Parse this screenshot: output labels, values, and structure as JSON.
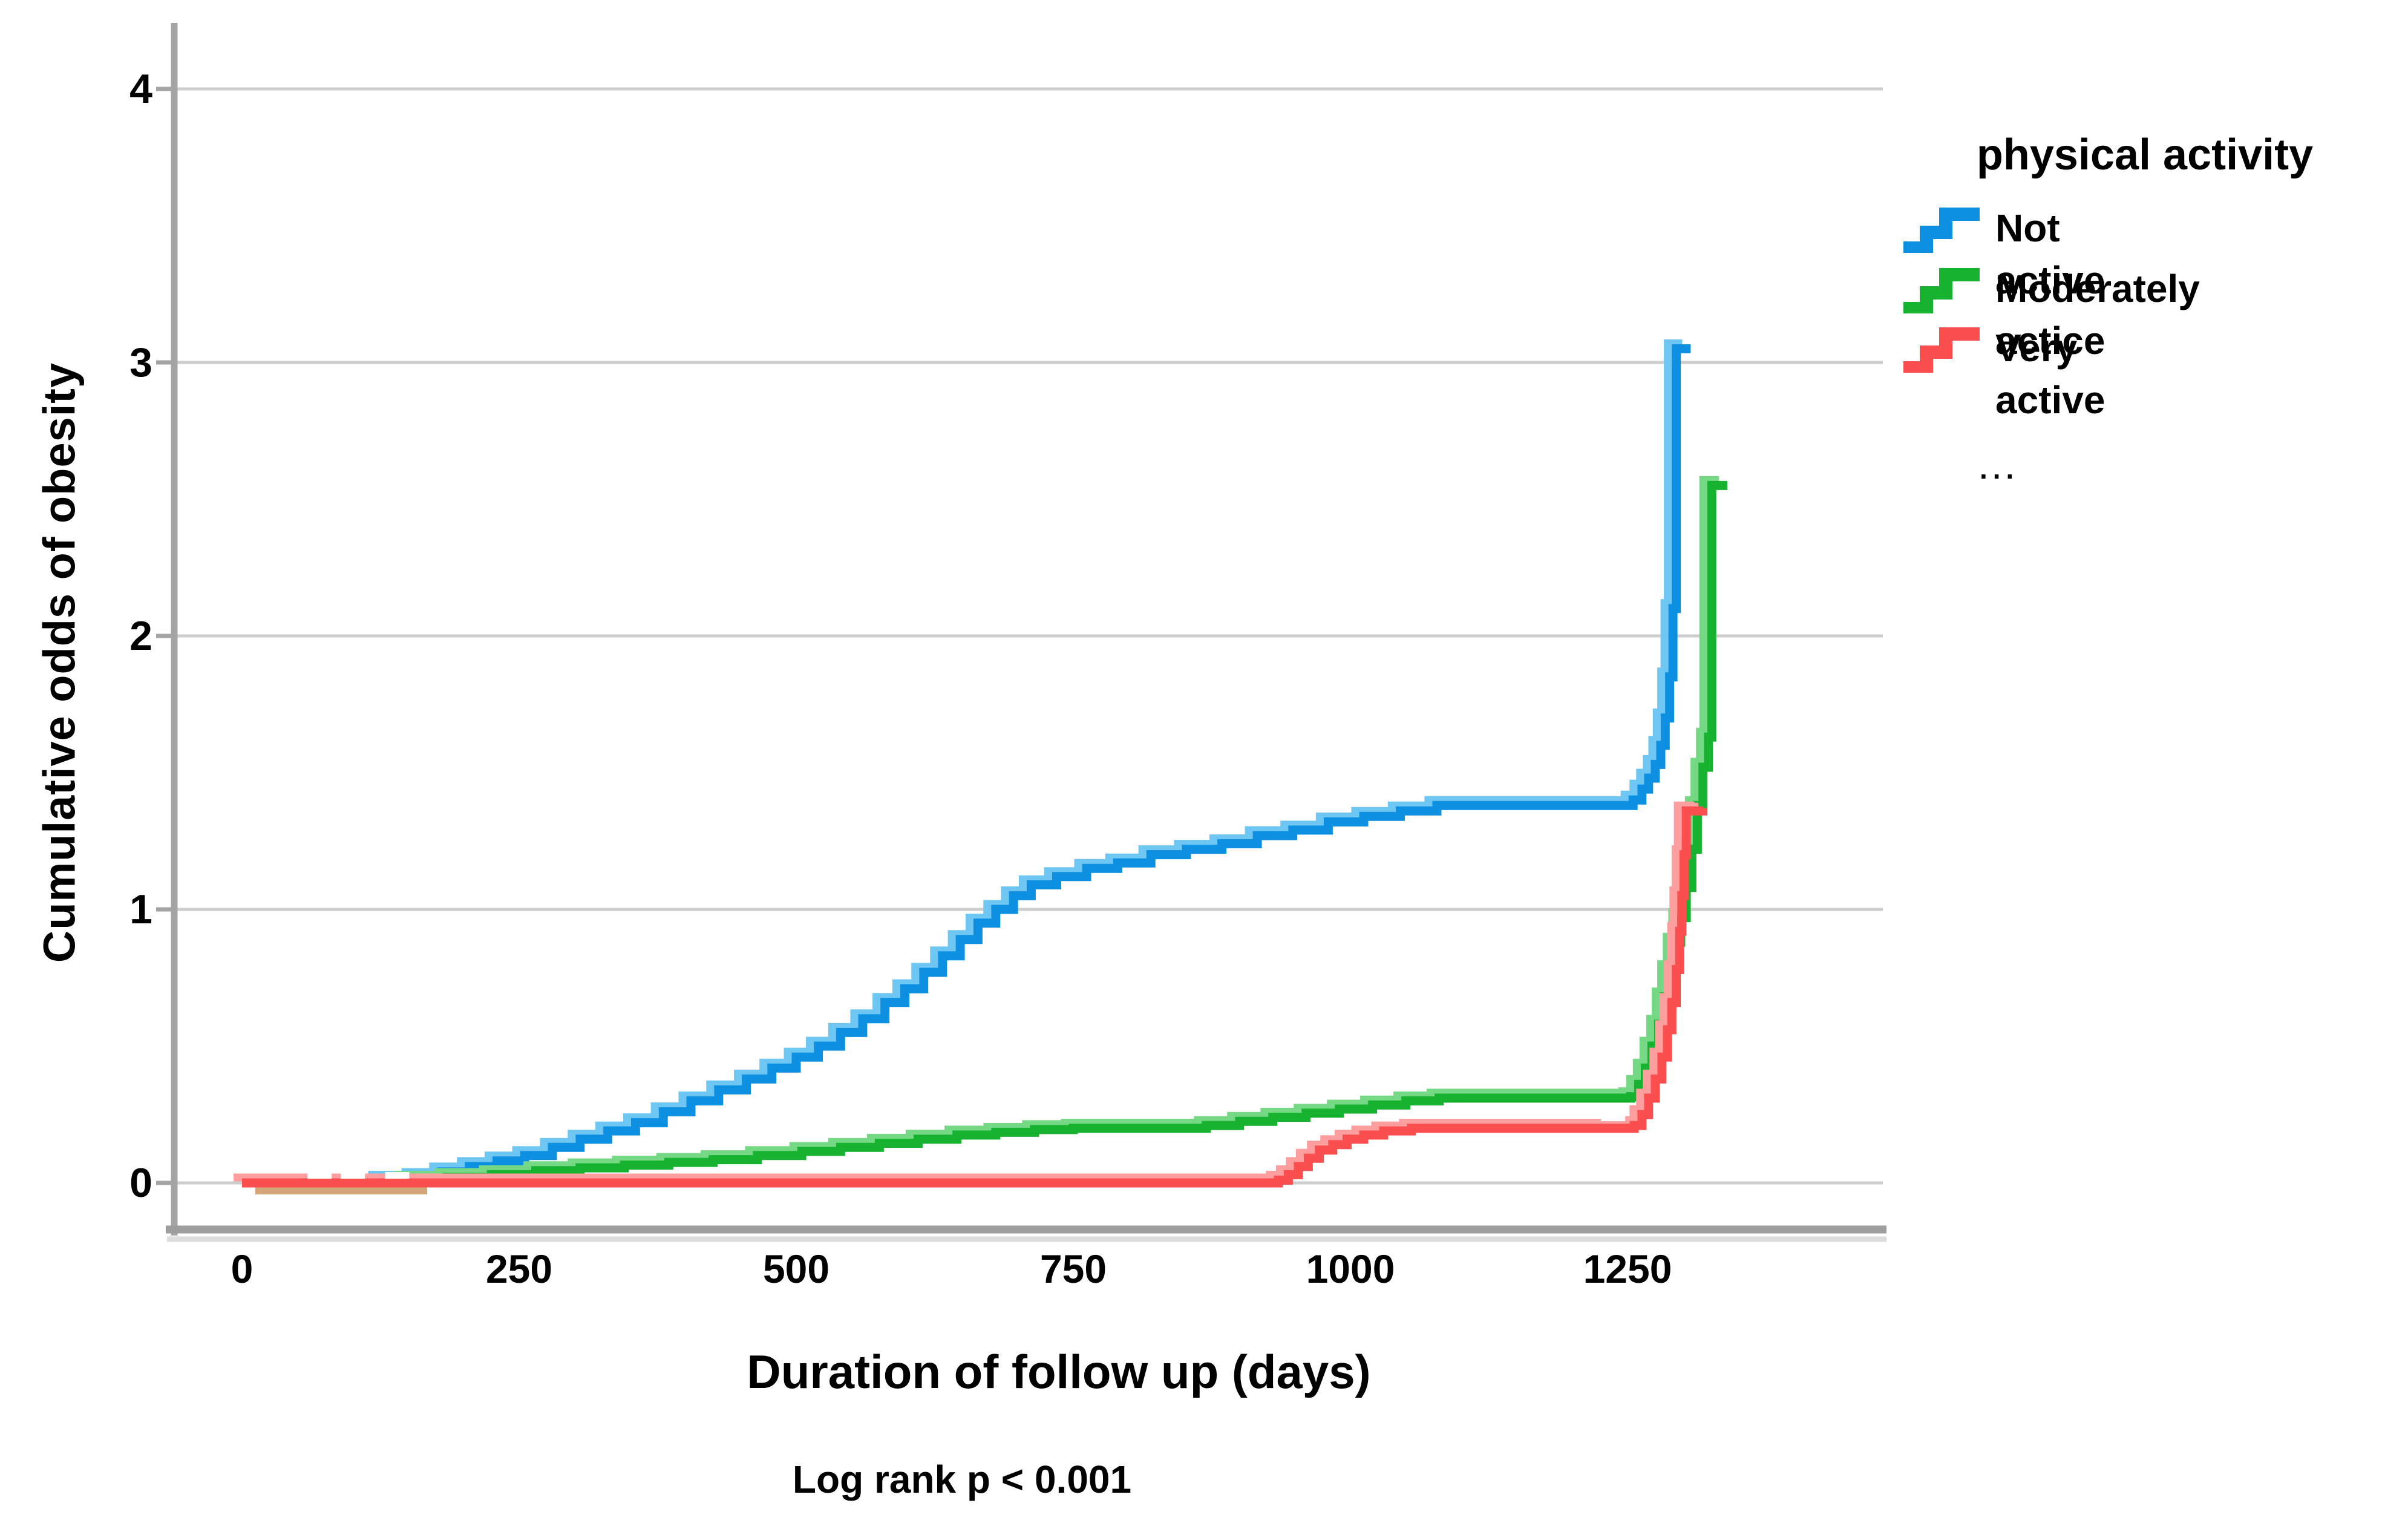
{
  "page": {
    "background": "#ffffff"
  },
  "y_axis": {
    "title": "Cumulative odds of obesity",
    "tick_labels": [
      "4",
      "3",
      "2",
      "1",
      "0"
    ]
  },
  "x_axis": {
    "title": "Duration of follow up (days)",
    "tick_labels": [
      "0",
      "250",
      "500",
      "750",
      "1000",
      "1250"
    ]
  },
  "caption": {
    "note": "Log rank p < 0.001"
  },
  "legend": {
    "title": "physical activity",
    "ellipsis": "...",
    "items": [
      {
        "label": "Not active",
        "color": "#0e90e2"
      },
      {
        "label": "Moderately actice",
        "color": "#17b330"
      },
      {
        "label": "Very active",
        "color": "#fb4e4e"
      }
    ]
  },
  "chart_data": {
    "type": "line",
    "subtype": "step-cumulative-hazard",
    "title": "",
    "xlabel": "Duration of follow up (days)",
    "ylabel": "Cumulative odds of obesity",
    "xlim": [
      0,
      1480
    ],
    "ylim": [
      0,
      4.3
    ],
    "x_ticks": [
      0,
      250,
      500,
      750,
      1000,
      1250
    ],
    "y_ticks": [
      0,
      1,
      2,
      3,
      4
    ],
    "grid": true,
    "grid_color": "#cdcdcd",
    "axis_color": "#a4a4a4",
    "legend_title": "physical activity",
    "legend_position": "right-top",
    "annotation": "Log rank p < 0.001",
    "series": [
      {
        "name": "Not active",
        "color": "#0e90e2",
        "color_light": "#6ec6f2",
        "steps": [
          [
            0,
            0
          ],
          [
            125,
            0.01
          ],
          [
            155,
            0.02
          ],
          [
            180,
            0.04
          ],
          [
            205,
            0.06
          ],
          [
            230,
            0.08
          ],
          [
            255,
            0.1
          ],
          [
            280,
            0.13
          ],
          [
            305,
            0.16
          ],
          [
            330,
            0.19
          ],
          [
            355,
            0.22
          ],
          [
            380,
            0.26
          ],
          [
            405,
            0.3
          ],
          [
            430,
            0.34
          ],
          [
            455,
            0.38
          ],
          [
            478,
            0.42
          ],
          [
            500,
            0.46
          ],
          [
            520,
            0.5
          ],
          [
            540,
            0.55
          ],
          [
            560,
            0.6
          ],
          [
            580,
            0.66
          ],
          [
            598,
            0.71
          ],
          [
            615,
            0.77
          ],
          [
            632,
            0.83
          ],
          [
            648,
            0.89
          ],
          [
            664,
            0.95
          ],
          [
            680,
            1.0
          ],
          [
            696,
            1.05
          ],
          [
            712,
            1.09
          ],
          [
            735,
            1.12
          ],
          [
            762,
            1.15
          ],
          [
            790,
            1.17
          ],
          [
            820,
            1.2
          ],
          [
            852,
            1.22
          ],
          [
            884,
            1.24
          ],
          [
            916,
            1.27
          ],
          [
            948,
            1.29
          ],
          [
            980,
            1.32
          ],
          [
            1012,
            1.34
          ],
          [
            1045,
            1.36
          ],
          [
            1078,
            1.38
          ],
          [
            1255,
            1.4
          ],
          [
            1263,
            1.44
          ],
          [
            1269,
            1.48
          ],
          [
            1275,
            1.53
          ],
          [
            1280,
            1.6
          ],
          [
            1284,
            1.7
          ],
          [
            1288,
            1.85
          ],
          [
            1291,
            2.1
          ],
          [
            1294,
            3.05
          ],
          [
            1307,
            3.05
          ]
        ]
      },
      {
        "name": "Moderately actice",
        "color": "#17b330",
        "color_light": "#74d884",
        "steps": [
          [
            0,
            0
          ],
          [
            148,
            0.01
          ],
          [
            185,
            0.02
          ],
          [
            225,
            0.03
          ],
          [
            265,
            0.045
          ],
          [
            305,
            0.055
          ],
          [
            345,
            0.065
          ],
          [
            385,
            0.075
          ],
          [
            425,
            0.085
          ],
          [
            465,
            0.1
          ],
          [
            505,
            0.115
          ],
          [
            540,
            0.13
          ],
          [
            575,
            0.145
          ],
          [
            610,
            0.16
          ],
          [
            645,
            0.175
          ],
          [
            680,
            0.185
          ],
          [
            715,
            0.195
          ],
          [
            750,
            0.2
          ],
          [
            870,
            0.21
          ],
          [
            900,
            0.225
          ],
          [
            930,
            0.24
          ],
          [
            960,
            0.255
          ],
          [
            990,
            0.27
          ],
          [
            1020,
            0.285
          ],
          [
            1050,
            0.3
          ],
          [
            1080,
            0.31
          ],
          [
            1253,
            0.315
          ],
          [
            1260,
            0.36
          ],
          [
            1266,
            0.42
          ],
          [
            1272,
            0.5
          ],
          [
            1278,
            0.58
          ],
          [
            1283,
            0.68
          ],
          [
            1288,
            0.78
          ],
          [
            1293,
            0.88
          ],
          [
            1298,
            0.97
          ],
          [
            1303,
            1.08
          ],
          [
            1308,
            1.22
          ],
          [
            1313,
            1.38
          ],
          [
            1318,
            1.52
          ],
          [
            1323,
            1.63
          ],
          [
            1326,
            2.55
          ],
          [
            1340,
            2.55
          ]
        ]
      },
      {
        "name": "Very active",
        "color": "#fb4e4e",
        "color_light": "#ff9e9e",
        "steps": [
          [
            0,
            0
          ],
          [
            935,
            0.01
          ],
          [
            944,
            0.03
          ],
          [
            953,
            0.06
          ],
          [
            962,
            0.09
          ],
          [
            972,
            0.12
          ],
          [
            984,
            0.14
          ],
          [
            997,
            0.16
          ],
          [
            1012,
            0.175
          ],
          [
            1030,
            0.19
          ],
          [
            1055,
            0.2
          ],
          [
            1256,
            0.21
          ],
          [
            1263,
            0.25
          ],
          [
            1269,
            0.31
          ],
          [
            1275,
            0.38
          ],
          [
            1281,
            0.46
          ],
          [
            1286,
            0.56
          ],
          [
            1290,
            0.66
          ],
          [
            1294,
            0.78
          ],
          [
            1297,
            0.92
          ],
          [
            1299,
            1.05
          ],
          [
            1301,
            1.2
          ],
          [
            1303,
            1.36
          ],
          [
            1318,
            1.37
          ]
        ]
      }
    ],
    "censor_marks": {
      "series": "Very active",
      "mark_color": "#ffffff",
      "points": [
        [
          70,
          0
        ],
        [
          100,
          0
        ],
        [
          140,
          0
        ],
        [
          1237,
          0.21
        ]
      ]
    }
  }
}
